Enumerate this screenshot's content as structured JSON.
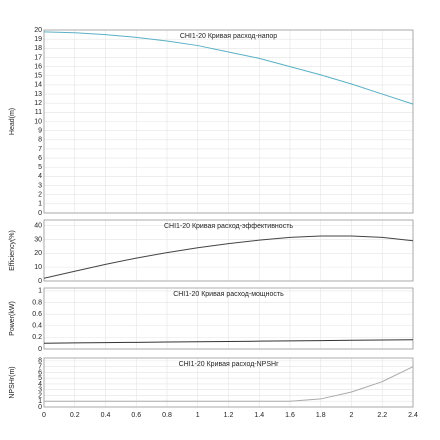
{
  "chart_data": [
    {
      "type": "line",
      "title": "CHI1-20 Кривая расход-напор",
      "y_label": "Head(m)",
      "x": [
        0,
        0.2,
        0.4,
        0.6,
        0.8,
        1,
        1.2,
        1.4,
        1.6,
        1.8,
        2,
        2.2,
        2.4
      ],
      "series": [
        {
          "color": "#5ab0c6",
          "values": [
            19.8,
            19.7,
            19.5,
            19.2,
            18.8,
            18.3,
            17.6,
            16.9,
            16.0,
            15.1,
            14.1,
            13.0,
            11.9
          ]
        }
      ],
      "xlim": [
        0,
        2.4
      ],
      "xticks": [
        0,
        0.2,
        0.4,
        0.6,
        0.8,
        1,
        1.2,
        1.4,
        1.6,
        1.8,
        2,
        2.2,
        2.4
      ],
      "ylim": [
        0,
        20
      ],
      "yticks": [
        0,
        1,
        2,
        3,
        4,
        5,
        6,
        7,
        8,
        9,
        10,
        11,
        12,
        13,
        14,
        15,
        16,
        17,
        18,
        19,
        20
      ],
      "grid": true
    },
    {
      "type": "line",
      "title": "CHI1-20 Кривая расход-эффективность",
      "y_label": "Efficiency(%)",
      "x": [
        0,
        0.2,
        0.4,
        0.6,
        0.8,
        1,
        1.2,
        1.4,
        1.6,
        1.8,
        2,
        2.2,
        2.4
      ],
      "series": [
        {
          "color": "#444444",
          "values": [
            2,
            7,
            12,
            16.5,
            20.5,
            24,
            27,
            29.5,
            31.5,
            32.5,
            32.5,
            31.5,
            29
          ]
        }
      ],
      "xlim": [
        0,
        2.4
      ],
      "xticks": [
        0,
        0.2,
        0.4,
        0.6,
        0.8,
        1,
        1.2,
        1.4,
        1.6,
        1.8,
        2,
        2.2,
        2.4
      ],
      "ylim": [
        0,
        44
      ],
      "yticks": [
        0,
        10,
        20,
        30,
        40
      ],
      "grid": true
    },
    {
      "type": "line",
      "title": "CHI1-20 Кривая расход-мощность",
      "y_label": "Power(kW)",
      "x": [
        0,
        0.2,
        0.4,
        0.6,
        0.8,
        1,
        1.2,
        1.4,
        1.6,
        1.8,
        2,
        2.2,
        2.4
      ],
      "series": [
        {
          "color": "#333333",
          "values": [
            0.1,
            0.105,
            0.11,
            0.115,
            0.12,
            0.125,
            0.13,
            0.135,
            0.14,
            0.145,
            0.15,
            0.155,
            0.16
          ]
        }
      ],
      "xlim": [
        0,
        2.4
      ],
      "xticks": [
        0,
        0.2,
        0.4,
        0.6,
        0.8,
        1,
        1.2,
        1.4,
        1.6,
        1.8,
        2,
        2.2,
        2.4
      ],
      "ylim": [
        0,
        1.05
      ],
      "yticks": [
        0,
        0.2,
        0.4,
        0.6,
        0.8,
        1
      ],
      "grid": true
    },
    {
      "type": "line",
      "title": "CHI1-20 Кривая расход-NPSHr",
      "y_label": "NPSHr(m)",
      "x": [
        0,
        0.2,
        0.4,
        0.6,
        0.8,
        1,
        1.2,
        1.4,
        1.6,
        1.8,
        2,
        2.2,
        2.4
      ],
      "series": [
        {
          "color": "#aaaaaa",
          "values": [
            1,
            1,
            1,
            1,
            1,
            1,
            1,
            1,
            1,
            1.4,
            2.6,
            4.4,
            7
          ]
        }
      ],
      "xlim": [
        0,
        2.4
      ],
      "xticks": [
        0,
        0.2,
        0.4,
        0.6,
        0.8,
        1,
        1.2,
        1.4,
        1.6,
        1.8,
        2,
        2.2,
        2.4
      ],
      "ylim": [
        0,
        8.5
      ],
      "yticks": [
        0,
        1,
        2,
        3,
        4,
        5,
        6,
        7,
        8
      ],
      "grid": true
    }
  ]
}
